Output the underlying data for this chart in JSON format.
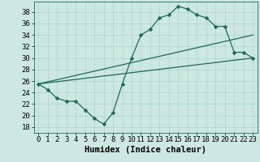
{
  "xlabel": "Humidex (Indice chaleur)",
  "background_color": "#cce8e0",
  "line_color": "#1a6b5a",
  "grid_color": "#afd4cc",
  "xlim": [
    -0.5,
    23.5
  ],
  "ylim": [
    17.0,
    39.8
  ],
  "yticks": [
    18,
    20,
    22,
    24,
    26,
    28,
    30,
    32,
    34,
    36,
    38
  ],
  "xticks": [
    0,
    1,
    2,
    3,
    4,
    5,
    6,
    7,
    8,
    9,
    10,
    11,
    12,
    13,
    14,
    15,
    16,
    17,
    18,
    19,
    20,
    21,
    22,
    23
  ],
  "line1_x": [
    0,
    1,
    2,
    3,
    4,
    5,
    6,
    7,
    8,
    9,
    10,
    11,
    12,
    13,
    14,
    15,
    16,
    17,
    18,
    19,
    20,
    21,
    22,
    23
  ],
  "line1_y": [
    25.5,
    24.5,
    23.0,
    22.5,
    22.5,
    21.0,
    19.5,
    18.5,
    20.5,
    25.5,
    30.0,
    34.0,
    35.0,
    37.0,
    37.5,
    39.0,
    38.5,
    37.5,
    37.0,
    35.5,
    35.5,
    31.0,
    31.0,
    30.0
  ],
  "line2_x": [
    0,
    23
  ],
  "line2_y": [
    25.5,
    30.0
  ],
  "line3_x": [
    0,
    23
  ],
  "line3_y": [
    25.5,
    34.0
  ],
  "markersize": 2.5,
  "linewidth": 0.9,
  "xlabel_fontsize": 7.5,
  "tick_fontsize": 6.5
}
